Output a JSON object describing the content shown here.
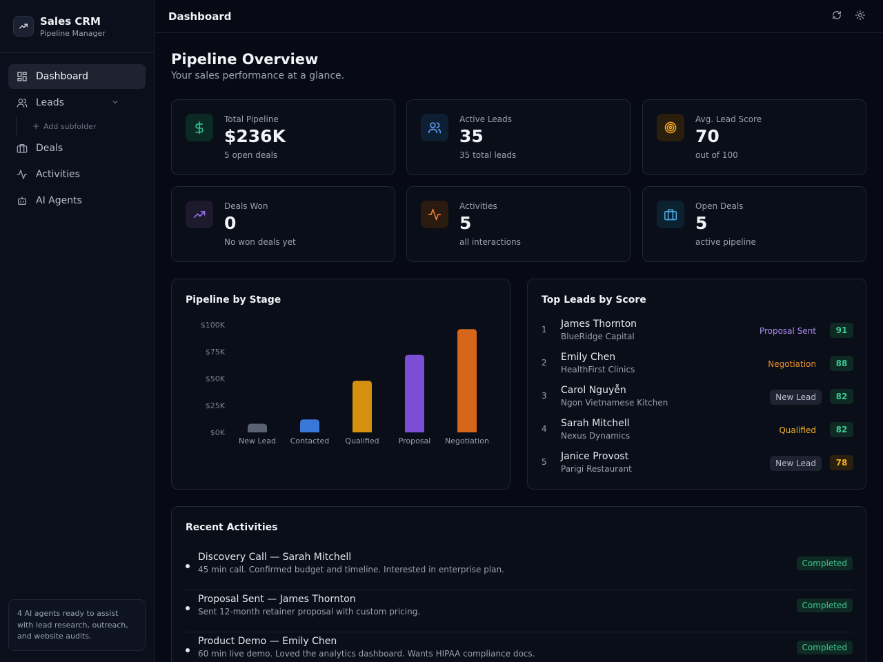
{
  "sidebar": {
    "brand_title": "Sales CRM",
    "brand_subtitle": "Pipeline Manager",
    "items": [
      {
        "label": "Dashboard",
        "icon": "dashboard-icon"
      },
      {
        "label": "Leads",
        "icon": "users-icon"
      },
      {
        "label": "Deals",
        "icon": "briefcase-icon"
      },
      {
        "label": "Activities",
        "icon": "activity-icon"
      },
      {
        "label": "AI Agents",
        "icon": "bot-icon"
      }
    ],
    "add_subfolder": "Add subfolder",
    "footer_text": "4 AI agents ready to assist with lead research, outreach, and website audits."
  },
  "topbar": {
    "title": "Dashboard"
  },
  "page": {
    "title": "Pipeline Overview",
    "subtitle": "Your sales performance at a glance."
  },
  "stats": [
    {
      "label": "Total Pipeline",
      "value": "$236K",
      "sub": "5 open deals",
      "icon": "dollar-icon",
      "color": "#2fbf8f"
    },
    {
      "label": "Active Leads",
      "value": "35",
      "sub": "35 total leads",
      "icon": "users-icon",
      "color": "#5b9cf0"
    },
    {
      "label": "Avg. Lead Score",
      "value": "70",
      "sub": "out of 100",
      "icon": "target-icon",
      "color": "#f0a020"
    },
    {
      "label": "Deals Won",
      "value": "0",
      "sub": "No won deals yet",
      "icon": "trending-up-icon",
      "color": "#9a6ff0"
    },
    {
      "label": "Activities",
      "value": "5",
      "sub": "all interactions",
      "icon": "activity-icon",
      "color": "#f07a30"
    },
    {
      "label": "Open Deals",
      "value": "5",
      "sub": "active pipeline",
      "icon": "briefcase-icon",
      "color": "#4aa8e0"
    }
  ],
  "pipeline_panel": {
    "title": "Pipeline by Stage"
  },
  "chart_data": {
    "type": "bar",
    "categories": [
      "New Lead",
      "Contacted",
      "Qualified",
      "Proposal",
      "Negotiation"
    ],
    "values": [
      8,
      12,
      48,
      72,
      96
    ],
    "colors": [
      "#5a6170",
      "#3a78d8",
      "#d4900e",
      "#7a4fd4",
      "#d8661a"
    ],
    "yticks": [
      "$0K",
      "$25K",
      "$50K",
      "$75K",
      "$100K"
    ],
    "ylim": [
      0,
      100
    ],
    "grid": false
  },
  "top_leads": {
    "title": "Top Leads by Score",
    "rows": [
      {
        "rank": "1",
        "name": "James Thornton",
        "company": "BlueRidge Capital",
        "stage": "Proposal Sent",
        "score": "91",
        "stage_color": "#b08cf5",
        "stage_bg": "",
        "score_color": "#3ec99a",
        "score_bg": "#0e2a22"
      },
      {
        "rank": "2",
        "name": "Emily Chen",
        "company": "HealthFirst Clinics",
        "stage": "Negotiation",
        "score": "88",
        "stage_color": "#f0902a",
        "stage_bg": "",
        "score_color": "#3ec99a",
        "score_bg": "#0e2a22"
      },
      {
        "rank": "3",
        "name": "Carol Nguyễn",
        "company": "Ngon Vietnamese Kitchen",
        "stage": "New Lead",
        "score": "82",
        "stage_color": "#b9becb",
        "stage_bg": "#1d2330",
        "score_color": "#3ec99a",
        "score_bg": "#0e2a22"
      },
      {
        "rank": "4",
        "name": "Sarah Mitchell",
        "company": "Nexus Dynamics",
        "stage": "Qualified",
        "score": "82",
        "stage_color": "#f0b020",
        "stage_bg": "",
        "score_color": "#3ec99a",
        "score_bg": "#0e2a22"
      },
      {
        "rank": "5",
        "name": "Janice Provost",
        "company": "Parigi Restaurant",
        "stage": "New Lead",
        "score": "78",
        "stage_color": "#b9becb",
        "stage_bg": "#1d2330",
        "score_color": "#f0b020",
        "score_bg": "#2a2010"
      }
    ]
  },
  "recent_activities": {
    "title": "Recent Activities",
    "rows": [
      {
        "title": "Discovery Call — Sarah Mitchell",
        "desc": "45 min call. Confirmed budget and timeline. Interested in enterprise plan.",
        "status": "Completed"
      },
      {
        "title": "Proposal Sent — James Thornton",
        "desc": "Sent 12-month retainer proposal with custom pricing.",
        "status": "Completed"
      },
      {
        "title": "Product Demo — Emily Chen",
        "desc": "60 min live demo. Loved the analytics dashboard. Wants HIPAA compliance docs.",
        "status": "Completed"
      }
    ]
  }
}
